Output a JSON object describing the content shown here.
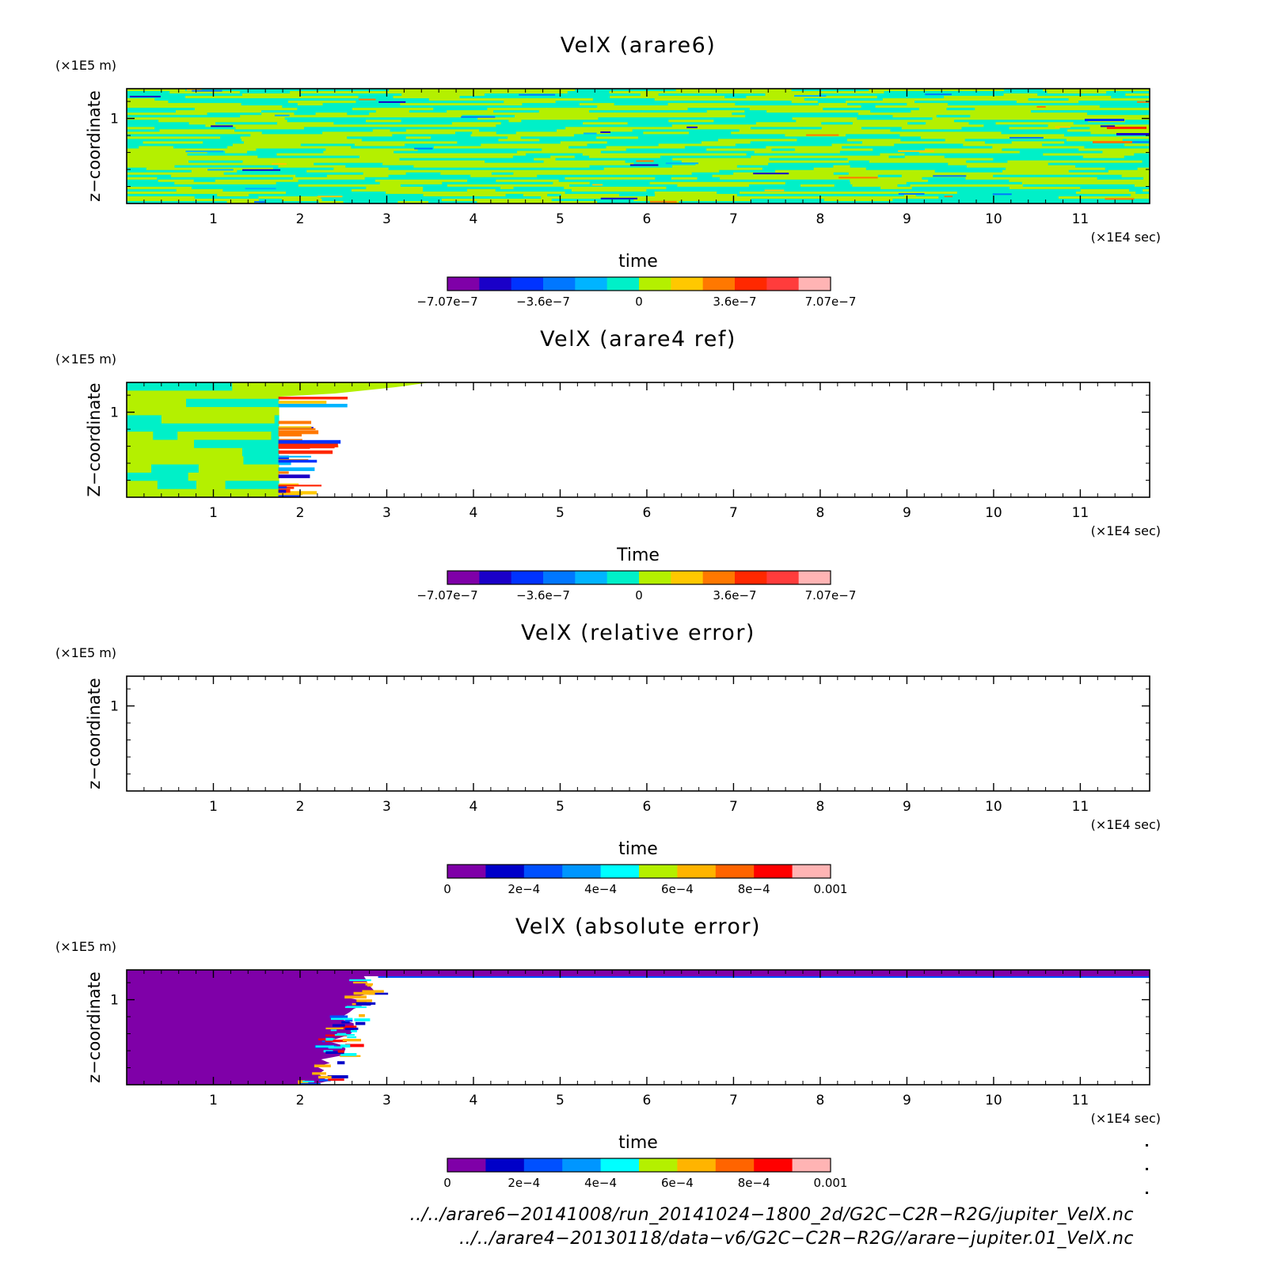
{
  "panels": [
    {
      "title": "VelX (arare6)",
      "y_unit": "(×1E5 m)",
      "ylabel": "z−coordinate",
      "xlabel": "time",
      "x_unit": "(×1E4 sec)",
      "colorbar": {
        "labels": [
          "−7.07e−7",
          "−3.6e−7",
          "0",
          "3.6e−7",
          "7.07e−7"
        ],
        "colors": [
          "#7f00a8",
          "#1a00c8",
          "#0033ff",
          "#0077ff",
          "#00b4ff",
          "#00f0c8",
          "#b4f000",
          "#ffc800",
          "#ff7800",
          "#ff2800",
          "#ff3c3c",
          "#ffb4b4"
        ]
      }
    },
    {
      "title": "VelX (arare4 ref)",
      "y_unit": "(×1E5 m)",
      "ylabel": "Z−coordinate",
      "xlabel": "Time",
      "x_unit": "(×1E4 sec)",
      "colorbar": {
        "labels": [
          "−7.07e−7",
          "−3.6e−7",
          "0",
          "3.6e−7",
          "7.07e−7"
        ],
        "colors": [
          "#7f00a8",
          "#1a00c8",
          "#0033ff",
          "#0077ff",
          "#00b4ff",
          "#00f0c8",
          "#b4f000",
          "#ffc800",
          "#ff7800",
          "#ff2800",
          "#ff3c3c",
          "#ffb4b4"
        ]
      }
    },
    {
      "title": "VelX (relative error)",
      "y_unit": "(×1E5 m)",
      "ylabel": "z−coordinate",
      "xlabel": "time",
      "x_unit": "(×1E4 sec)",
      "colorbar": {
        "labels": [
          "0",
          "2e−4",
          "4e−4",
          "6e−4",
          "8e−4",
          "0.001"
        ],
        "colors": [
          "#7f00a8",
          "#0000c8",
          "#0050ff",
          "#0096ff",
          "#00ffff",
          "#b4f000",
          "#ffb400",
          "#ff6400",
          "#ff0000",
          "#ffb4b4"
        ]
      }
    },
    {
      "title": "VelX (absolute error)",
      "y_unit": "(×1E5 m)",
      "ylabel": "z−coordinate",
      "xlabel": "time",
      "x_unit": "(×1E4 sec)",
      "colorbar": {
        "labels": [
          "0",
          "2e−4",
          "4e−4",
          "6e−4",
          "8e−4",
          "0.001"
        ],
        "colors": [
          "#7f00a8",
          "#0000c8",
          "#0050ff",
          "#0096ff",
          "#00ffff",
          "#b4f000",
          "#ffb400",
          "#ff6400",
          "#ff0000",
          "#ffb4b4"
        ]
      }
    }
  ],
  "chart_data": [
    {
      "type": "heatmap",
      "title": "VelX (arare6)",
      "xlabel": "time",
      "x_unit": "×1E4 sec",
      "ylabel": "z−coordinate",
      "y_unit": "×1E5 m",
      "xlim": [
        0,
        11.8
      ],
      "ylim": [
        0,
        1.35
      ],
      "xticks": [
        1,
        2,
        3,
        4,
        5,
        6,
        7,
        8,
        9,
        10,
        11
      ],
      "yticks": [
        1
      ],
      "color_range": [
        -7.07e-07,
        7.07e-07
      ],
      "field_extent_time": [
        0,
        11.8
      ]
    },
    {
      "type": "heatmap",
      "title": "VelX (arare4 ref)",
      "xlabel": "Time",
      "x_unit": "×1E4 sec",
      "ylabel": "Z−coordinate",
      "y_unit": "×1E5 m",
      "xlim": [
        0,
        11.8
      ],
      "ylim": [
        0,
        1.35
      ],
      "xticks": [
        1,
        2,
        3,
        4,
        5,
        6,
        7,
        8,
        9,
        10,
        11
      ],
      "yticks": [
        1
      ],
      "color_range": [
        -7.07e-07,
        7.07e-07
      ],
      "field_extent_time": [
        0,
        1.75
      ]
    },
    {
      "type": "heatmap",
      "title": "VelX (relative error)",
      "xlabel": "time",
      "x_unit": "×1E4 sec",
      "ylabel": "z−coordinate",
      "y_unit": "×1E5 m",
      "xlim": [
        0,
        11.8
      ],
      "ylim": [
        0,
        1.35
      ],
      "xticks": [
        1,
        2,
        3,
        4,
        5,
        6,
        7,
        8,
        9,
        10,
        11
      ],
      "yticks": [
        1
      ],
      "color_range": [
        0,
        0.001
      ],
      "field_extent_time": null
    },
    {
      "type": "heatmap",
      "title": "VelX (absolute error)",
      "xlabel": "time",
      "x_unit": "×1E4 sec",
      "ylabel": "z−coordinate",
      "y_unit": "×1E5 m",
      "xlim": [
        0,
        11.8
      ],
      "ylim": [
        0,
        1.35
      ],
      "xticks": [
        1,
        2,
        3,
        4,
        5,
        6,
        7,
        8,
        9,
        10,
        11
      ],
      "yticks": [
        1
      ],
      "color_range": [
        0,
        0.001
      ],
      "field_extent_time": [
        0,
        2.2
      ]
    }
  ],
  "footer": {
    "file1": "../../arare6−20141008/run_20141024−1800_2d/G2C−C2R−R2G/jupiter_VelX.nc",
    "file2": "../../arare4−20130118/data−v6/G2C−C2R−R2G//arare−jupiter.01_VelX.nc"
  }
}
